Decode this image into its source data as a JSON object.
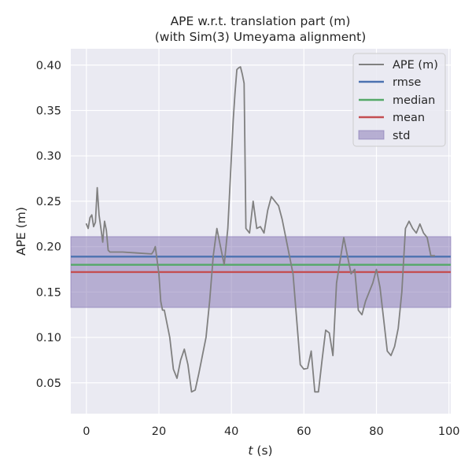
{
  "chart_data": {
    "type": "line",
    "title_line1": "APE w.r.t. translation part (m)",
    "title_line2": "(with Sim(3) Umeyama alignment)",
    "xlabel_var": "t",
    "xlabel_unit": " (s)",
    "ylabel": "APE (m)",
    "xlim": [
      -4.3,
      100.5
    ],
    "ylim": [
      0.016,
      0.418
    ],
    "x_ticks": [
      0,
      20,
      40,
      60,
      80,
      100
    ],
    "y_ticks": [
      0.05,
      0.1,
      0.15,
      0.2,
      0.25,
      0.3,
      0.35,
      0.4
    ],
    "x_tick_labels": [
      "0",
      "20",
      "40",
      "60",
      "80",
      "100"
    ],
    "y_tick_labels": [
      "0.05",
      "0.10",
      "0.15",
      "0.20",
      "0.25",
      "0.30",
      "0.35",
      "0.40"
    ],
    "grid": true,
    "legend_position": "top-right",
    "legend": {
      "ape": "APE (m)",
      "rmse": "rmse",
      "median": "median",
      "mean": "mean",
      "std": "std"
    },
    "stats": {
      "rmse": 0.189,
      "median": 0.18,
      "mean": 0.172,
      "std_low": 0.133,
      "std_high": 0.211
    },
    "colors": {
      "ape": "#808080",
      "rmse": "#4c72b0",
      "median": "#55a868",
      "mean": "#c44e52",
      "std": "#8172b2",
      "background": "#eaeaf2",
      "grid": "#ffffff"
    },
    "series": [
      {
        "name": "APE (m)",
        "x": [
          0,
          0.5,
          1,
          1.5,
          2,
          2.5,
          3,
          3.5,
          4,
          4.5,
          5,
          5.5,
          6,
          6.5,
          7,
          10,
          14,
          18,
          18.5,
          19,
          19.5,
          20,
          20.5,
          21,
          21.5,
          22,
          23,
          24,
          25,
          26,
          27,
          28,
          29,
          30,
          31,
          32,
          33,
          34,
          35,
          36,
          37,
          38,
          39,
          40,
          40.5,
          41,
          41.5,
          42,
          42.5,
          43,
          43.5,
          44,
          45,
          46,
          47,
          48,
          49,
          50,
          51,
          52,
          53,
          54,
          55,
          56,
          57,
          58,
          59,
          60,
          61,
          62,
          63,
          64,
          65,
          66,
          67,
          68,
          69,
          70,
          71,
          72,
          73,
          74,
          75,
          76,
          77,
          78,
          79,
          80,
          81,
          82,
          83,
          84,
          85,
          86,
          87,
          88,
          89,
          90,
          91,
          92,
          93,
          94,
          95,
          96
        ],
        "values": [
          0.225,
          0.22,
          0.232,
          0.235,
          0.222,
          0.227,
          0.265,
          0.235,
          0.22,
          0.205,
          0.228,
          0.218,
          0.196,
          0.194,
          0.194,
          0.194,
          0.193,
          0.192,
          0.195,
          0.2,
          0.185,
          0.17,
          0.14,
          0.13,
          0.13,
          0.12,
          0.1,
          0.065,
          0.055,
          0.075,
          0.087,
          0.07,
          0.04,
          0.042,
          0.06,
          0.08,
          0.1,
          0.14,
          0.19,
          0.22,
          0.2,
          0.18,
          0.22,
          0.3,
          0.34,
          0.37,
          0.395,
          0.397,
          0.398,
          0.39,
          0.38,
          0.22,
          0.215,
          0.25,
          0.22,
          0.222,
          0.215,
          0.24,
          0.255,
          0.25,
          0.245,
          0.23,
          0.21,
          0.19,
          0.17,
          0.12,
          0.07,
          0.065,
          0.066,
          0.085,
          0.04,
          0.04,
          0.075,
          0.108,
          0.105,
          0.08,
          0.16,
          0.185,
          0.21,
          0.19,
          0.17,
          0.175,
          0.13,
          0.125,
          0.14,
          0.15,
          0.16,
          0.175,
          0.155,
          0.12,
          0.085,
          0.08,
          0.09,
          0.11,
          0.15,
          0.22,
          0.228,
          0.22,
          0.215,
          0.225,
          0.215,
          0.21,
          0.19,
          0.19
        ]
      }
    ]
  }
}
